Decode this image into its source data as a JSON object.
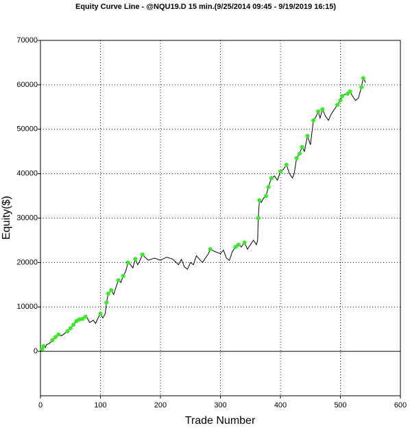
{
  "chart_data": {
    "type": "line",
    "title": "Equity Curve Line - @NQU19.D 15 min.(9/25/2014 09:45 - 9/19/2019 16:15)",
    "x_label": "Trade Number",
    "y_label": "Equity($)",
    "xlim": [
      0,
      600
    ],
    "xticks": [
      0,
      100,
      200,
      300,
      400,
      500,
      600
    ],
    "ylim": [
      -10000,
      70000
    ],
    "yticks": [
      0,
      10000,
      20000,
      30000,
      40000,
      50000,
      60000,
      70000
    ],
    "grid": true,
    "series": [
      {
        "color": "#000000",
        "x": [
          0,
          3,
          5,
          8,
          10,
          15,
          20,
          25,
          30,
          35,
          40,
          45,
          50,
          55,
          60,
          65,
          70,
          75,
          78,
          82,
          88,
          92,
          96,
          100,
          104,
          108,
          110,
          113,
          118,
          122,
          126,
          130,
          134,
          138,
          142,
          146,
          150,
          154,
          158,
          162,
          166,
          170,
          174,
          180,
          190,
          200,
          210,
          220,
          230,
          235,
          240,
          245,
          250,
          255,
          260,
          270,
          275,
          280,
          283,
          290,
          300,
          305,
          310,
          315,
          320,
          325,
          330,
          335,
          340,
          345,
          350,
          355,
          360,
          362,
          363,
          365,
          368,
          372,
          376,
          380,
          385,
          390,
          395,
          400,
          405,
          410,
          415,
          420,
          423,
          427,
          432,
          436,
          440,
          445,
          450,
          455,
          460,
          463,
          466,
          470,
          475,
          480,
          485,
          490,
          495,
          500,
          503,
          507,
          512,
          516,
          520,
          525,
          530,
          535,
          538,
          542
        ],
        "values": [
          0,
          500,
          1200,
          800,
          1500,
          1800,
          2500,
          3200,
          3800,
          3500,
          4000,
          4500,
          5200,
          6000,
          6800,
          7200,
          7300,
          7800,
          7500,
          6500,
          7000,
          6300,
          7500,
          8500,
          7500,
          8500,
          11000,
          13000,
          13800,
          12800,
          14500,
          16000,
          15500,
          17000,
          18000,
          20000,
          19500,
          18800,
          20800,
          19500,
          20500,
          21800,
          21200,
          20500,
          21000,
          20500,
          21200,
          20800,
          19500,
          20700,
          19000,
          18500,
          20000,
          19500,
          21500,
          20000,
          21000,
          22000,
          23000,
          22500,
          22000,
          22800,
          21000,
          20500,
          22500,
          23500,
          24000,
          23500,
          24500,
          23000,
          24000,
          25000,
          24000,
          25000,
          30000,
          34000,
          33500,
          34500,
          35000,
          37000,
          39000,
          39500,
          38500,
          40500,
          41000,
          42000,
          40000,
          39000,
          40000,
          43500,
          44500,
          46000,
          45000,
          48500,
          46500,
          52000,
          53000,
          54000,
          52500,
          54500,
          53000,
          52000,
          53500,
          54500,
          55500,
          56500,
          57500,
          57800,
          58000,
          58500,
          57500,
          56500,
          57000,
          59500,
          61500,
          60500
        ]
      },
      {
        "color": "#33ee22",
        "markers": true,
        "x": [
          3,
          5,
          20,
          25,
          30,
          45,
          50,
          55,
          60,
          65,
          70,
          75,
          100,
          110,
          113,
          118,
          130,
          138,
          146,
          158,
          170,
          283,
          325,
          330,
          340,
          363,
          365,
          376,
          380,
          385,
          400,
          410,
          427,
          432,
          436,
          445,
          455,
          463,
          470,
          495,
          500,
          503,
          512,
          516,
          535,
          538
        ],
        "values": [
          500,
          1200,
          2500,
          3200,
          3800,
          4500,
          5200,
          6000,
          6800,
          7200,
          7300,
          7800,
          8500,
          11000,
          13000,
          13800,
          16000,
          17000,
          20000,
          20800,
          21800,
          23000,
          23500,
          24000,
          24500,
          30000,
          34000,
          35000,
          37000,
          39000,
          40500,
          42000,
          43500,
          44500,
          46000,
          48500,
          52000,
          54000,
          54500,
          55500,
          56500,
          57500,
          58000,
          58500,
          59500,
          61500
        ]
      }
    ]
  }
}
